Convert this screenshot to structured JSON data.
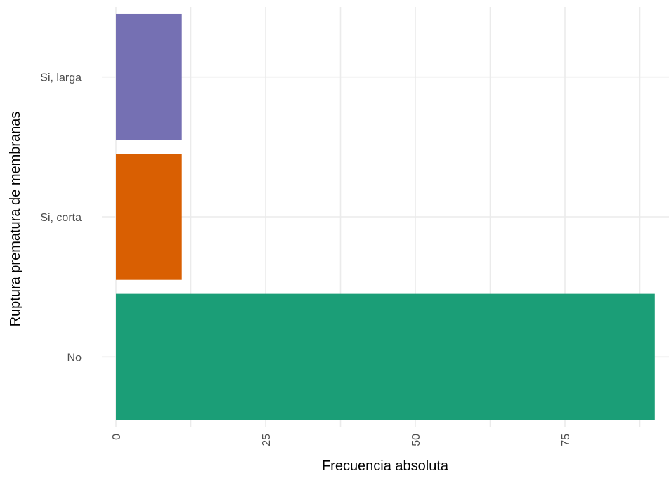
{
  "chart_data": {
    "type": "bar",
    "orientation": "horizontal",
    "categories": [
      "No",
      "Si, corta",
      "Si, larga"
    ],
    "values": [
      90,
      11,
      11
    ],
    "colors": [
      "#1b9e77",
      "#d95f02",
      "#7570b3"
    ],
    "xlabel": "Frecuencia absoluta",
    "ylabel": "Ruptura prematura de membranas",
    "xlim": [
      0,
      90
    ],
    "x_ticks": [
      0,
      25,
      50,
      75
    ],
    "x_tick_labels": [
      "0",
      "25",
      "50",
      "75"
    ],
    "grid": true,
    "legend": "none"
  }
}
